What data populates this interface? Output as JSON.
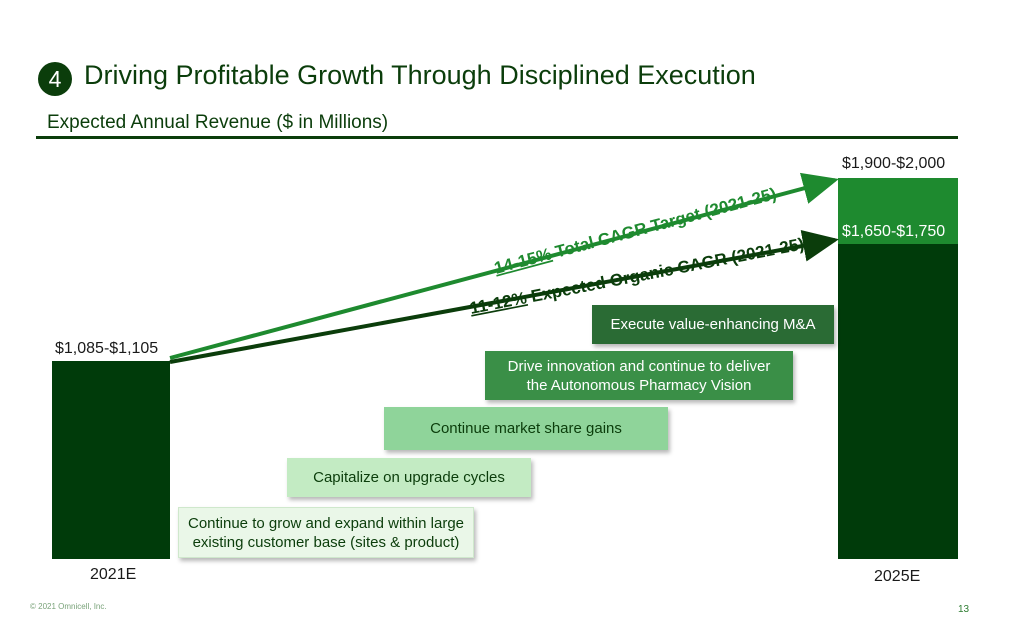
{
  "header": {
    "badge": "4",
    "title": "Driving Profitable Growth Through Disciplined Execution",
    "subtitle": "Expected Annual Revenue ($ in Millions)"
  },
  "chart_data": {
    "type": "bar",
    "categories": [
      "2021E",
      "2025E"
    ],
    "bars": [
      {
        "category": "2021E",
        "value_low": 1085,
        "value_high": 1105,
        "label": "$1,085-$1,105"
      },
      {
        "category": "2025E",
        "organic_low": 1650,
        "organic_high": 1750,
        "organic_label": "$1,650-$1,750",
        "total_low": 1900,
        "total_high": 2000,
        "total_label": "$1,900-$2,000"
      }
    ],
    "cagr_lines": [
      {
        "highlight": "14-15%",
        "text": " Total CAGR Target (2021-25)",
        "color": "#1e8a2f"
      },
      {
        "highlight": "11-12%",
        "text": " Expected Organic CAGR (2021-25)",
        "color": "#0b3d0b"
      }
    ],
    "steps": [
      {
        "lines": [
          "Continue to grow and expand within large",
          "existing customer base (sites & product)"
        ],
        "fill": "#eaf7e8",
        "text_color": "#0b3d0b"
      },
      {
        "lines": [
          "Capitalize on upgrade cycles"
        ],
        "fill": "#c3ebc3",
        "text_color": "#0b3d0b"
      },
      {
        "lines": [
          "Continue market share gains"
        ],
        "fill": "#8fd49a",
        "text_color": "#0b3d0b"
      },
      {
        "lines": [
          "Drive innovation and continue to deliver",
          "the Autonomous Pharmacy Vision"
        ],
        "fill": "#3a8f47",
        "text_color": "#ffffff"
      },
      {
        "lines": [
          "Execute value-enhancing M&A"
        ],
        "fill": "#2a6b34",
        "text_color": "#ffffff"
      }
    ]
  },
  "footer": {
    "copyright": "© 2021 Omnicell, Inc.",
    "page": "13"
  }
}
